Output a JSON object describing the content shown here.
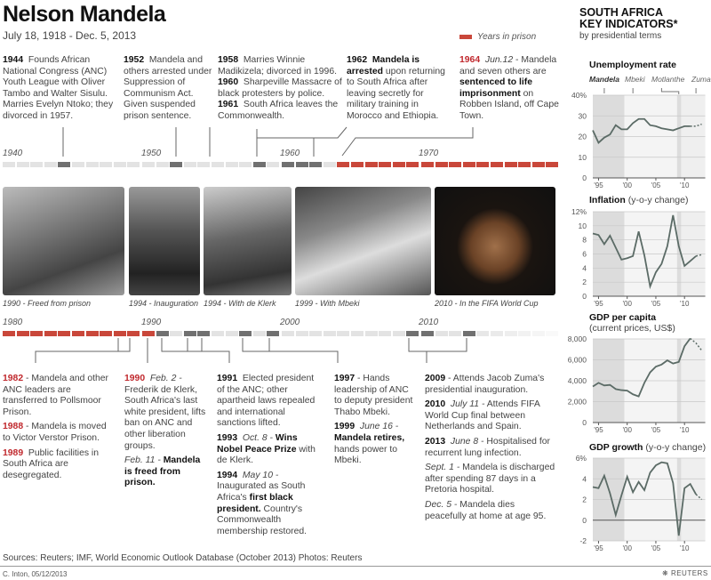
{
  "header": {
    "title": "Nelson Mandela",
    "dates": "July 18, 1918 - Dec. 5, 2013"
  },
  "legend": {
    "label": "Years in prison",
    "color": "#c9473a"
  },
  "colors": {
    "prison": "#c9473a",
    "event": "#707070",
    "normal": "#e3e3e3",
    "accent_red": "#c0282d"
  },
  "timeline_top": {
    "decades": [
      "1940",
      "1950",
      "1960",
      "1970"
    ],
    "start": 1940,
    "event_years": [
      1944,
      1952,
      1958,
      1960,
      1961,
      1962
    ],
    "prison_years": [
      1964,
      1965,
      1966,
      1967,
      1968,
      1969,
      1970,
      1971,
      1972,
      1973,
      1974,
      1975,
      1976,
      1977,
      1978,
      1979
    ]
  },
  "timeline_bottom": {
    "decades": [
      "1980",
      "1990",
      "2000",
      "2010"
    ],
    "start": 1980,
    "event_years": [
      1991,
      1993,
      1994,
      1997,
      1999,
      2009,
      2010,
      2013
    ],
    "prison_years": [
      1980,
      1981,
      1982,
      1983,
      1984,
      1985,
      1986,
      1987,
      1988,
      1989,
      1990
    ]
  },
  "events_top": [
    {
      "year": "1944",
      "text": "Founds African National Congress (ANC) Youth League with Oliver Tambo and Walter Sisulu. Marries Evelyn Ntoko; they divorced in 1957."
    },
    {
      "year": "1952",
      "text": "Mandela and others arrested under Suppression of Communism Act. Given suspended prison sentence."
    },
    {
      "year": "1958",
      "text": "Marries Winnie Madikizela; divorced in 1996.",
      "year2": "1960",
      "text2": "Sharpeville Massacre of black protesters by police.",
      "year3": "1961",
      "text3": "South Africa leaves the Commonwealth."
    },
    {
      "year": "1962",
      "bold": "Mandela is arrested",
      "text": "upon returning to South Africa after leaving secretly for military training in Morocco and Ethiopia."
    },
    {
      "year": "1964",
      "date": "Jun.12",
      "text": "- Mandela and seven others are",
      "bold": "sentenced to life imprisonment",
      "text2": "on Robben Island, off Cape Town."
    }
  ],
  "photos": [
    {
      "caption": "1990 - Freed from prison"
    },
    {
      "caption": "1994 - Inauguration"
    },
    {
      "caption": "1994 - With de Klerk"
    },
    {
      "caption": "1999 - With Mbeki"
    },
    {
      "caption": "2010 - In the FIFA World Cup"
    }
  ],
  "events_bottom": {
    "e1982": {
      "year": "1982",
      "text": "- Mandela and other ANC leaders are transferred to Pollsmoor Prison."
    },
    "e1988": {
      "year": "1988",
      "text": "- Mandela is moved to Victor Verstor Prison."
    },
    "e1989": {
      "year": "1989",
      "text": "Public facilities in South Africa are desegregated."
    },
    "e1990": {
      "year": "1990",
      "date": "Feb. 2 -",
      "text": "Frederik de Klerk, South Africa's last white president, lifts ban on ANC and other liberation groups.",
      "date2": "Feb. 11 -",
      "bold": "Mandela is freed from prison."
    },
    "e1991": {
      "year": "1991",
      "text": "Elected president of the ANC; other apartheid laws repealed and international sanctions lifted."
    },
    "e1993": {
      "year": "1993",
      "date": "Oct. 8 -",
      "bold": "Wins Nobel Peace Prize",
      "text": "with de Klerk."
    },
    "e1994": {
      "year": "1994",
      "date": "May 10 -",
      "text": "Inaugurated as South Africa's",
      "bold": "first black president.",
      "text2": "Country's Commonwealth membership restored."
    },
    "e1997": {
      "year": "1997",
      "text": "- Hands leadership of ANC to deputy president Thabo Mbeki."
    },
    "e1999": {
      "year": "1999",
      "date": "June 16 -",
      "bold": "Mandela retires,",
      "text": "hands power to Mbeki."
    },
    "e2009": {
      "year": "2009",
      "text": "- Attends Jacob Zuma's presidential inauguration."
    },
    "e2010": {
      "year": "2010",
      "date": "July 11 -",
      "text": "Attends FIFA World Cup final between Netherlands and Spain."
    },
    "e2013": {
      "year": "2013",
      "date": "June 8 -",
      "text": "Hospitalised for recurrent lung infection.",
      "date2": "Sept. 1 -",
      "text2": "Mandela is discharged after spending 87 days in a Pretoria hospital.",
      "date3": "Dec. 5 -",
      "text3": "Mandela dies peacefully at home at age 95."
    }
  },
  "right_panel": {
    "title_line1": "SOUTH AFRICA",
    "title_line2": "KEY INDICATORS*",
    "subtitle": "by presidential terms",
    "presidents": [
      "Mandela",
      "Mbeki",
      "Motlanthe",
      "Zuma"
    ]
  },
  "chart_data": [
    {
      "type": "line",
      "title": "Unemployment rate",
      "subtitle": "",
      "years": [
        1994,
        1995,
        1996,
        1997,
        1998,
        1999,
        2000,
        2001,
        2002,
        2003,
        2004,
        2005,
        2006,
        2007,
        2008,
        2009,
        2010,
        2011,
        2012,
        2013
      ],
      "values": [
        23,
        17,
        19.5,
        21,
        25.5,
        23.5,
        23.5,
        26.5,
        28.5,
        28.5,
        25.5,
        25,
        24,
        23.5,
        23,
        24,
        25,
        25,
        25,
        26
      ],
      "projected_from": 2011,
      "ylim": [
        0,
        40
      ],
      "yticks": [
        "40%",
        "30",
        "20",
        "10",
        "0"
      ],
      "xticks": [
        "'95",
        "'00",
        "'05",
        "'10"
      ]
    },
    {
      "type": "line",
      "title": "Inflation",
      "subtitle": "(y-o-y change)",
      "years": [
        1994,
        1995,
        1996,
        1997,
        1998,
        1999,
        2000,
        2001,
        2002,
        2003,
        2004,
        2005,
        2006,
        2007,
        2008,
        2009,
        2010,
        2011,
        2012,
        2013
      ],
      "values": [
        8.9,
        8.7,
        7.4,
        8.6,
        6.9,
        5.2,
        5.4,
        5.7,
        9.2,
        5.8,
        1.4,
        3.4,
        4.6,
        7.1,
        11.5,
        7.1,
        4.3,
        5.0,
        5.7,
        5.9
      ],
      "projected_from": 2012,
      "ylim": [
        0,
        12
      ],
      "yticks": [
        "12%",
        "10",
        "8",
        "6",
        "4",
        "2",
        "0"
      ],
      "xticks": [
        "'95",
        "'00",
        "'05",
        "'10"
      ]
    },
    {
      "type": "line",
      "title": "GDP per capita",
      "subtitle": "(current prices, US$)",
      "years": [
        1994,
        1995,
        1996,
        1997,
        1998,
        1999,
        2000,
        2001,
        2002,
        2003,
        2004,
        2005,
        2006,
        2007,
        2008,
        2009,
        2010,
        2011,
        2012,
        2013
      ],
      "values": [
        3450,
        3800,
        3550,
        3600,
        3200,
        3100,
        3050,
        2700,
        2500,
        3800,
        4800,
        5350,
        5550,
        5950,
        5650,
        5800,
        7300,
        8050,
        7600,
        6900
      ],
      "projected_from": 2011,
      "ylim": [
        0,
        8000
      ],
      "yticks": [
        "8,000",
        "6,000",
        "4,000",
        "2,000",
        "0"
      ],
      "xticks": [
        "'95",
        "'00",
        "'05",
        "'10"
      ]
    },
    {
      "type": "line",
      "title": "GDP growth",
      "subtitle": "(y-o-y change)",
      "years": [
        1994,
        1995,
        1996,
        1997,
        1998,
        1999,
        2000,
        2001,
        2002,
        2003,
        2004,
        2005,
        2006,
        2007,
        2008,
        2009,
        2010,
        2011,
        2012,
        2013
      ],
      "values": [
        3.2,
        3.1,
        4.3,
        2.6,
        0.5,
        2.4,
        4.2,
        2.7,
        3.7,
        2.9,
        4.6,
        5.3,
        5.6,
        5.5,
        3.6,
        -1.5,
        3.1,
        3.5,
        2.5,
        2.0
      ],
      "projected_from": 2012,
      "ylim": [
        -2,
        6
      ],
      "yticks": [
        "6%",
        "4",
        "2",
        "0",
        "-2"
      ],
      "xticks": [
        "'95",
        "'00",
        "'05",
        "'10"
      ]
    }
  ],
  "footer": {
    "sources": "Sources: Reuters; IMF, World Economic Outlook Database (October 2013)  Photos: Reuters",
    "credit": "C. Inton, 05/12/2013",
    "logo": "REUTERS"
  }
}
